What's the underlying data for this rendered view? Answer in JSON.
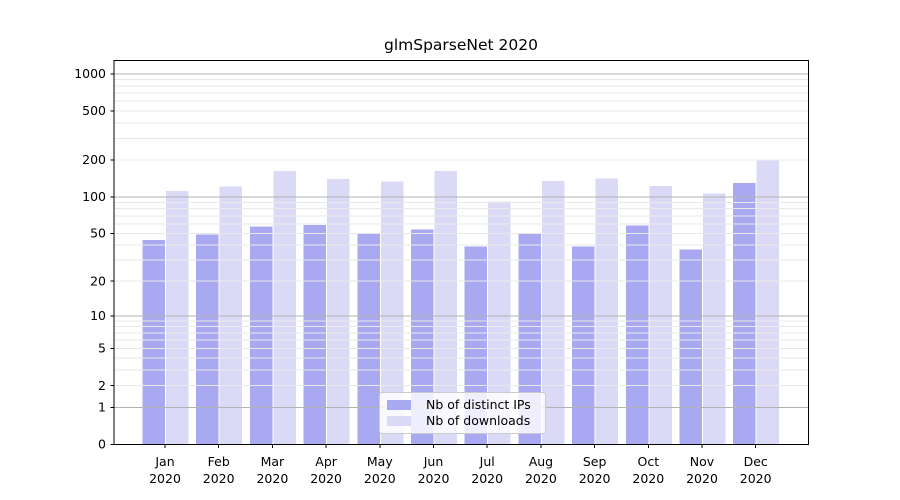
{
  "chart_data": {
    "type": "bar",
    "title": "glmSparseNet 2020",
    "categories": [
      "Jan\n2020",
      "Feb\n2020",
      "Mar\n2020",
      "Apr\n2020",
      "May\n2020",
      "Jun\n2020",
      "Jul\n2020",
      "Aug\n2020",
      "Sep\n2020",
      "Oct\n2020",
      "Nov\n2020",
      "Dec\n2020"
    ],
    "series": [
      {
        "name": "Nb of distinct IPs",
        "color": "#a9a9f1",
        "values": [
          44,
          49,
          57,
          59,
          50,
          54,
          39,
          50,
          39,
          58,
          37,
          130
        ]
      },
      {
        "name": "Nb of downloads",
        "color": "#dadaf7",
        "values": [
          112,
          121,
          163,
          140,
          134,
          163,
          92,
          135,
          141,
          123,
          107,
          200
        ]
      }
    ],
    "xlabel": "",
    "ylabel": "",
    "yscale": "log1p",
    "yticks": [
      0,
      1,
      2,
      5,
      10,
      20,
      50,
      100,
      200,
      500,
      1000
    ],
    "ylim": [
      0,
      1281
    ],
    "grid": "on",
    "grid_major_color": "#b3b3b3",
    "grid_minor_color": "#e9e9e9",
    "axis_color": "#000000",
    "legend_position": "lower center"
  }
}
